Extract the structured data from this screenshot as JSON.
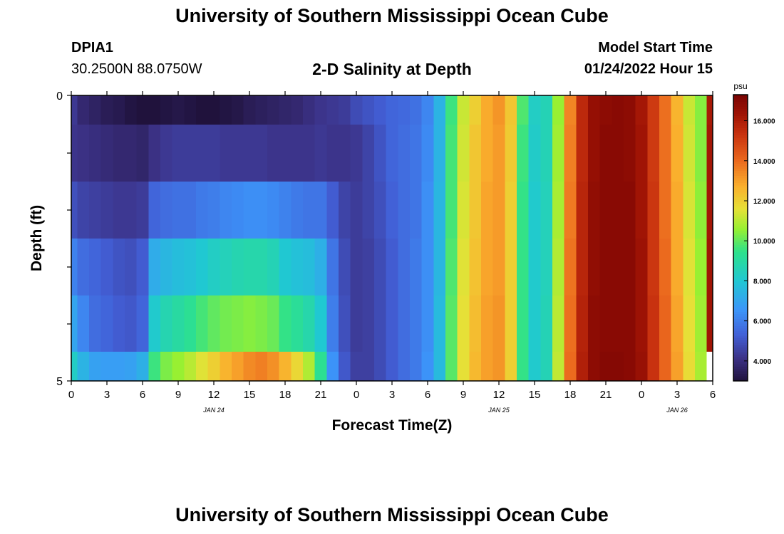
{
  "header": {
    "title": "University of Southern Mississippi Ocean Cube",
    "station_id": "DPIA1",
    "station_coords": "30.2500N  88.0750W",
    "chart_title": "2-D Salinity at Depth",
    "model_label": "Model Start Time",
    "model_time": "01/24/2022 Hour 15"
  },
  "footer": {
    "title": "University of Southern Mississippi Ocean Cube"
  },
  "chart_data": {
    "type": "heatmap",
    "title": "2-D Salinity at Depth",
    "xlabel": "Forecast Time(Z)",
    "ylabel": "Depth (ft)",
    "y_ticks": [
      "0",
      "5"
    ],
    "ylim": [
      0,
      5
    ],
    "x_ticks": [
      "0",
      "3",
      "6",
      "9",
      "12",
      "15",
      "18",
      "21",
      "0",
      "3",
      "6",
      "9",
      "12",
      "15",
      "18",
      "21",
      "0",
      "3",
      "6"
    ],
    "x_hours": [
      0,
      3,
      6,
      9,
      12,
      15,
      18,
      21,
      24,
      27,
      30,
      33,
      36,
      39,
      42,
      45,
      48,
      51,
      54
    ],
    "date_labels": [
      {
        "label": "JAN 24",
        "hour": 12
      },
      {
        "label": "JAN 25",
        "hour": 36
      },
      {
        "label": "JAN 26",
        "hour": 51
      }
    ],
    "colorbar": {
      "unit": "psu",
      "min": 3.0,
      "max": 17.3,
      "ticks": [
        "4.000",
        "6.000",
        "8.000",
        "10.000",
        "12.000",
        "14.000",
        "16.000"
      ],
      "tick_values": [
        4,
        6,
        8,
        10,
        12,
        14,
        16
      ]
    },
    "depth_layers": [
      "0-0.5",
      "0.5-1.5",
      "1.5-2.5",
      "2.5-3.5",
      "3.5-4.5",
      "4.5-5"
    ],
    "time_hours": [
      0,
      1,
      2,
      3,
      4,
      5,
      6,
      7,
      8,
      9,
      10,
      11,
      12,
      13,
      14,
      15,
      16,
      17,
      18,
      19,
      20,
      21,
      22,
      23,
      24,
      25,
      26,
      27,
      28,
      29,
      30,
      31,
      32,
      33,
      34,
      35,
      36,
      37,
      38,
      39,
      40,
      41,
      42,
      43,
      44,
      45,
      46,
      47,
      48,
      49,
      50,
      51,
      52,
      53,
      54
    ],
    "salinity": [
      [
        4.3,
        3.8,
        3.6,
        3.4,
        3.3,
        3.1,
        3.0,
        3.0,
        3.1,
        3.2,
        3.1,
        3.0,
        3.0,
        3.1,
        3.2,
        3.4,
        3.5,
        3.6,
        3.7,
        3.8,
        4.0,
        4.2,
        4.3,
        4.4,
        4.8,
        5.0,
        5.2,
        5.4,
        5.5,
        5.7,
        6.2,
        7.4,
        9.6,
        11.2,
        12.0,
        12.8,
        13.2,
        12.2,
        9.8,
        8.3,
        8.6,
        10.6,
        13.5,
        15.6,
        16.6,
        16.8,
        16.9,
        16.8,
        16.2,
        15.1,
        13.9,
        12.6,
        11.2,
        10.4,
        16.1
      ],
      [
        4.2,
        4.1,
        4.0,
        3.9,
        3.8,
        3.8,
        3.7,
        4.1,
        4.3,
        4.4,
        4.4,
        4.4,
        4.4,
        4.3,
        4.3,
        4.3,
        4.3,
        4.2,
        4.2,
        4.2,
        4.2,
        4.3,
        4.2,
        4.2,
        4.3,
        4.6,
        5.0,
        5.4,
        5.6,
        5.8,
        6.3,
        7.4,
        9.7,
        11.3,
        12.2,
        12.8,
        13.1,
        12.1,
        9.6,
        8.2,
        8.6,
        10.7,
        13.6,
        15.6,
        16.6,
        16.9,
        16.9,
        16.8,
        16.3,
        15.1,
        13.9,
        12.7,
        11.3,
        10.4,
        16.2
      ],
      [
        4.9,
        4.6,
        4.5,
        4.4,
        4.3,
        4.3,
        4.4,
        5.4,
        5.6,
        5.7,
        5.7,
        5.9,
        6.0,
        6.2,
        6.3,
        6.4,
        6.4,
        6.3,
        6.1,
        5.9,
        5.8,
        5.8,
        5.2,
        4.6,
        4.4,
        4.6,
        4.9,
        5.3,
        5.6,
        5.8,
        6.4,
        7.5,
        9.7,
        11.4,
        12.2,
        12.9,
        13.1,
        12.0,
        9.5,
        8.1,
        8.5,
        10.8,
        13.7,
        15.7,
        16.7,
        16.9,
        16.9,
        16.9,
        16.3,
        15.2,
        13.9,
        12.8,
        11.4,
        10.5,
        16.2
      ],
      [
        6.1,
        5.6,
        5.4,
        5.2,
        5.0,
        4.9,
        5.2,
        7.2,
        7.5,
        7.7,
        7.8,
        8.0,
        8.3,
        8.5,
        8.7,
        8.8,
        8.8,
        8.6,
        8.0,
        7.8,
        7.7,
        7.3,
        5.8,
        4.8,
        4.4,
        4.5,
        4.8,
        5.2,
        5.6,
        5.9,
        6.4,
        7.5,
        9.8,
        11.5,
        12.3,
        12.9,
        13.1,
        12.0,
        9.5,
        8.1,
        8.5,
        10.9,
        13.8,
        15.7,
        16.7,
        16.9,
        16.9,
        16.9,
        16.4,
        15.2,
        14.0,
        12.8,
        11.5,
        10.6,
        16.3
      ],
      [
        7.0,
        6.2,
        5.6,
        5.4,
        5.2,
        5.1,
        5.4,
        8.1,
        8.7,
        9.0,
        9.3,
        9.7,
        10.0,
        10.2,
        10.3,
        10.4,
        10.3,
        10.1,
        9.5,
        9.2,
        8.8,
        8.0,
        6.0,
        4.9,
        4.4,
        4.5,
        4.8,
        5.2,
        5.6,
        5.9,
        6.4,
        7.6,
        9.9,
        11.6,
        12.4,
        13.0,
        13.2,
        12.0,
        9.5,
        8.1,
        8.6,
        11.0,
        13.9,
        15.8,
        16.8,
        16.9,
        16.9,
        16.9,
        16.4,
        15.3,
        14.1,
        12.9,
        11.6,
        10.7,
        16.3
      ],
      [
        8.3,
        7.4,
        6.9,
        6.8,
        6.8,
        6.9,
        7.3,
        9.6,
        10.3,
        10.6,
        11.0,
        11.5,
        12.0,
        12.6,
        13.0,
        13.4,
        13.6,
        13.3,
        12.6,
        11.8,
        10.9,
        9.3,
        6.5,
        5.1,
        4.5,
        4.5,
        4.8,
        5.2,
        5.6,
        5.9,
        6.5,
        7.6,
        9.9,
        11.6,
        12.5,
        13.0,
        13.2,
        12.0,
        9.5,
        8.1,
        8.6,
        11.1,
        14.0,
        15.9,
        16.8,
        17.0,
        17.0,
        16.9,
        16.5,
        15.3,
        14.1,
        13.0,
        11.7,
        10.8,
        -1
      ]
    ]
  }
}
